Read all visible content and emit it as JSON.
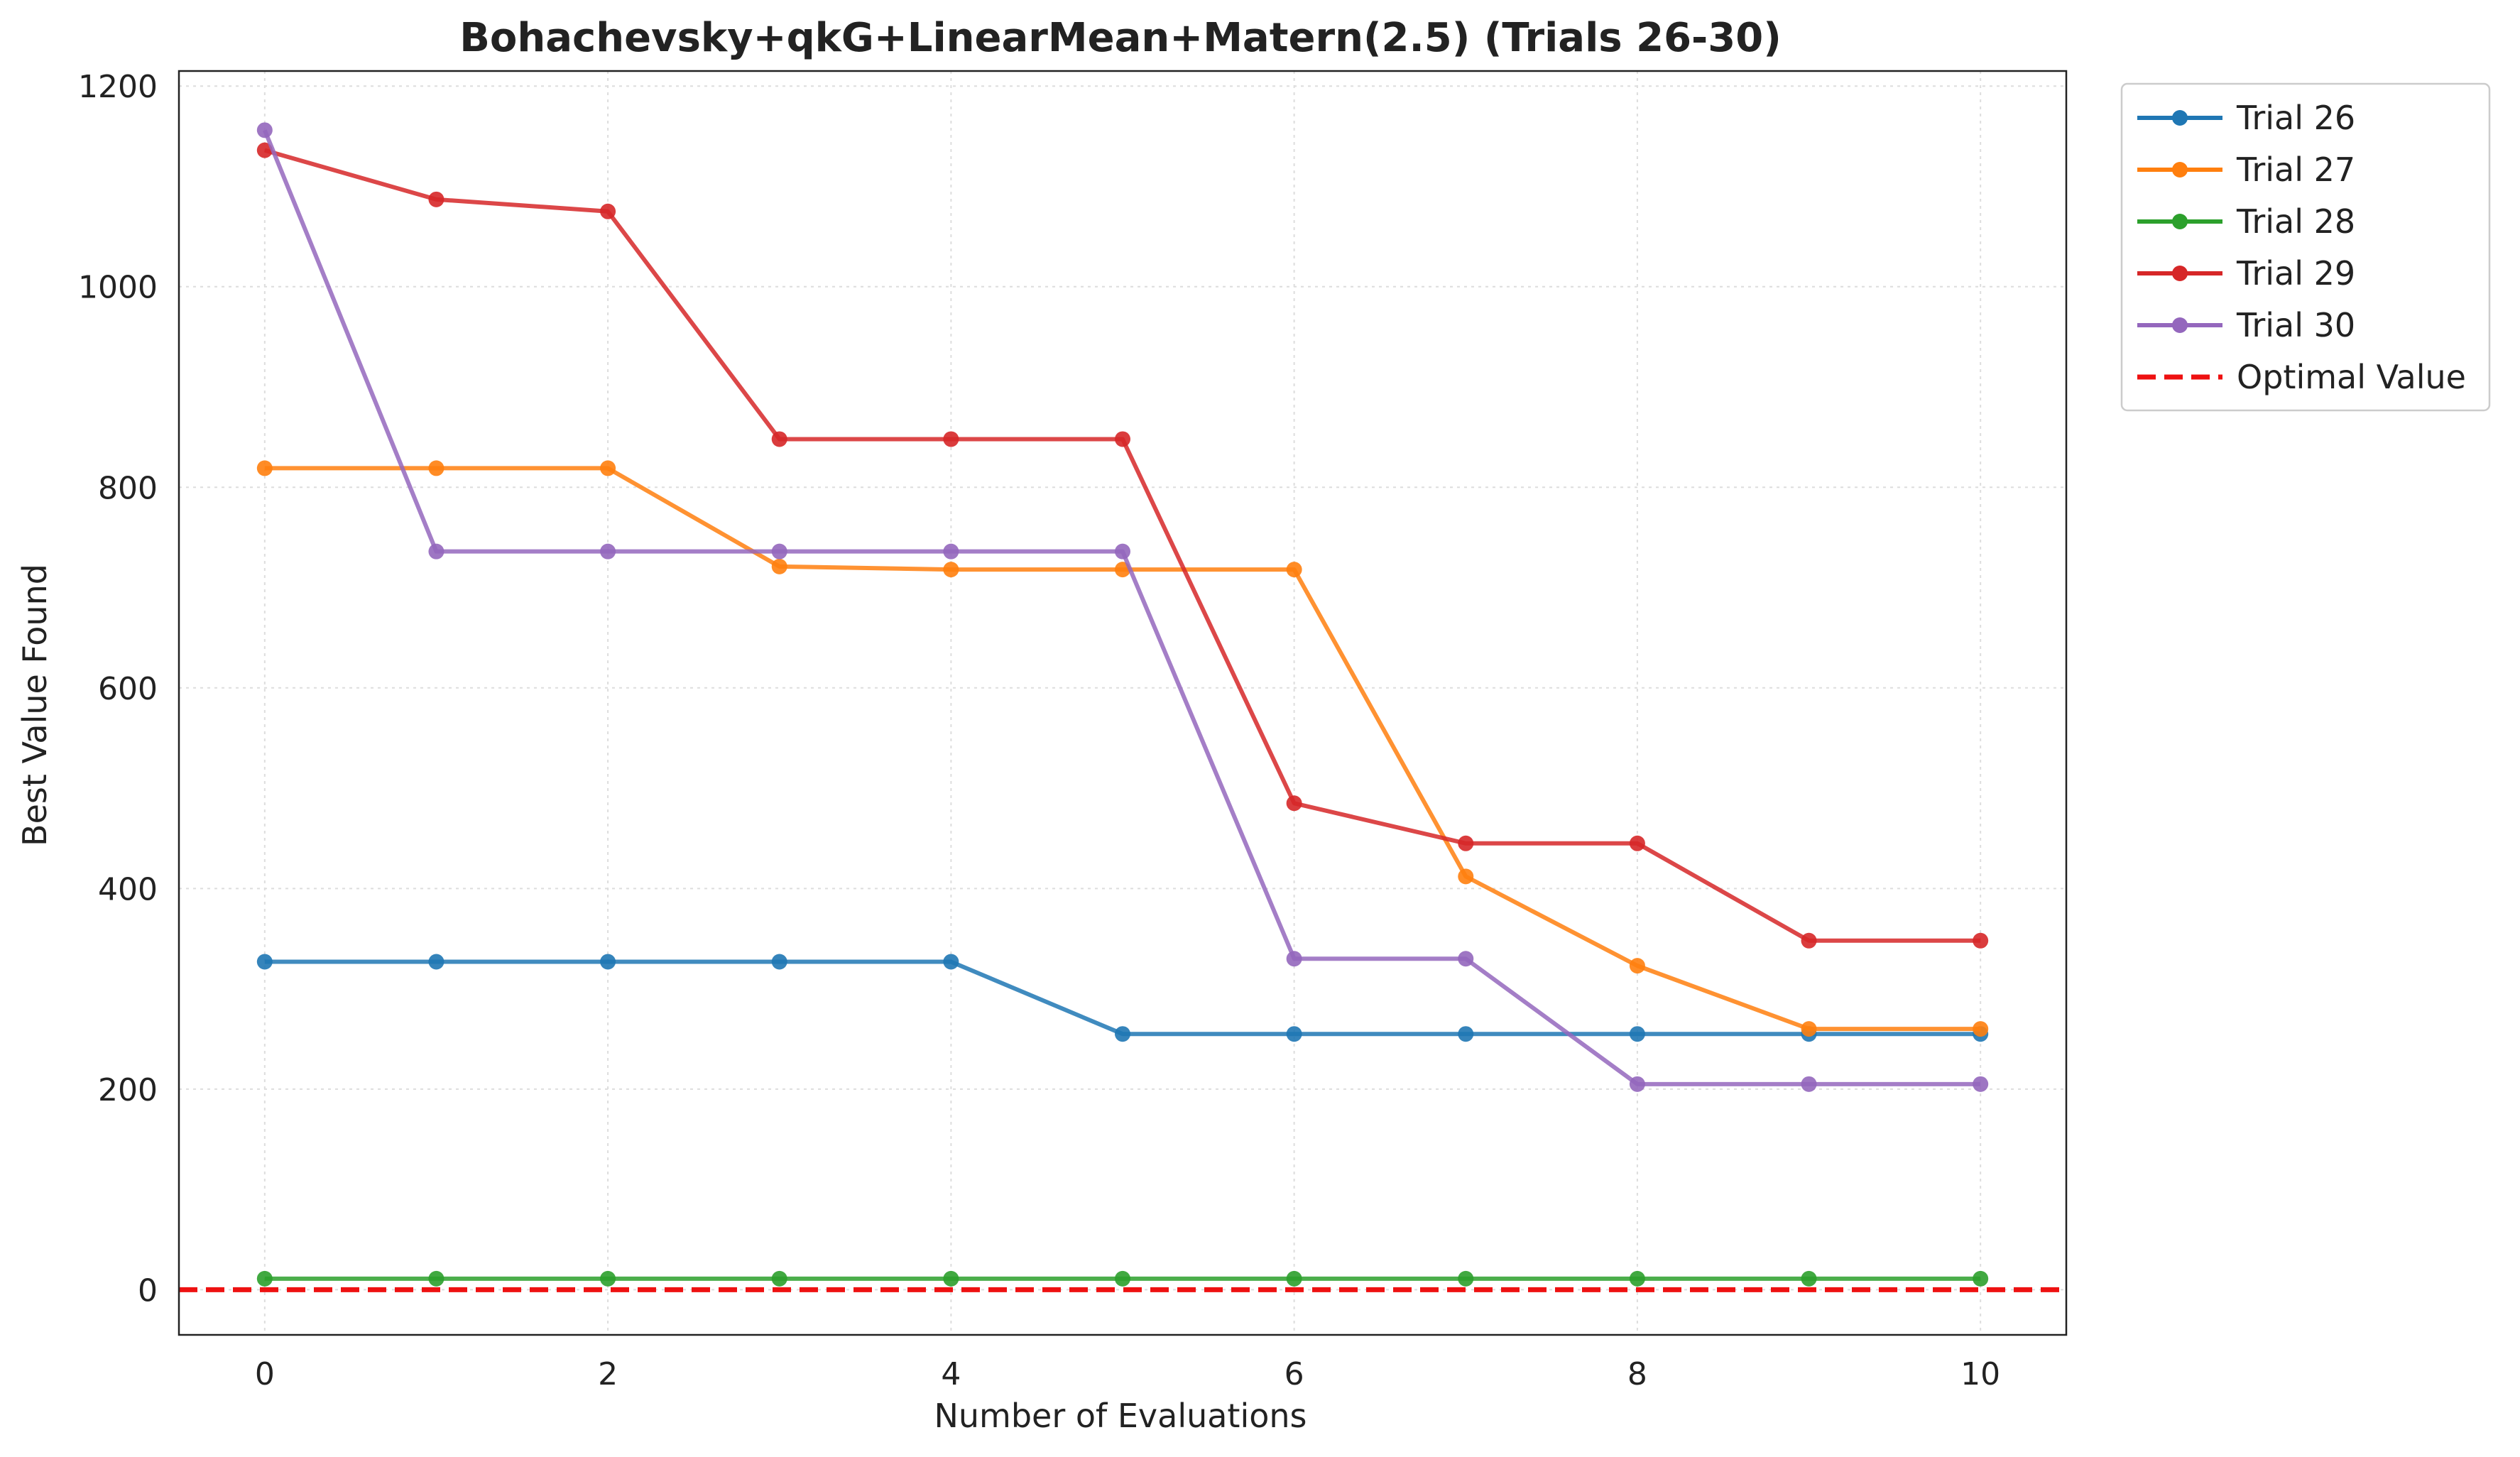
{
  "chart_data": {
    "type": "line",
    "title": "Bohachevsky+qkG+LinearMean+Matern(2.5) (Trials 26-30)",
    "xlabel": "Number of Evaluations",
    "ylabel": "Best Value Found",
    "xlim": [
      -0.5,
      10.5
    ],
    "ylim": [
      -45,
      1215
    ],
    "xticks": [
      0,
      2,
      4,
      6,
      8,
      10
    ],
    "yticks": [
      0,
      200,
      400,
      600,
      800,
      1000,
      1200
    ],
    "grid": true,
    "legend_position": "outside upper-right",
    "x": [
      0,
      1,
      2,
      3,
      4,
      5,
      6,
      7,
      8,
      9,
      10
    ],
    "series": [
      {
        "name": "Trial 26",
        "color": "#1f77b4",
        "values": [
          327,
          327,
          327,
          327,
          327,
          255,
          255,
          255,
          255,
          255,
          255
        ]
      },
      {
        "name": "Trial 27",
        "color": "#ff7f0e",
        "values": [
          819,
          819,
          819,
          721,
          718,
          718,
          718,
          412,
          323,
          260,
          260
        ]
      },
      {
        "name": "Trial 28",
        "color": "#2ca02c",
        "values": [
          11,
          11,
          11,
          11,
          11,
          11,
          11,
          11,
          11,
          11,
          11
        ]
      },
      {
        "name": "Trial 29",
        "color": "#d62728",
        "values": [
          1136,
          1087,
          1075,
          848,
          848,
          848,
          485,
          445,
          445,
          348,
          348
        ]
      },
      {
        "name": "Trial 30",
        "color": "#9467bd",
        "values": [
          1156,
          736,
          736,
          736,
          736,
          736,
          330,
          330,
          205,
          205,
          205
        ]
      }
    ],
    "reference_line": {
      "name": "Optimal Value",
      "value": 0,
      "color": "#ee1111",
      "style": "dashed"
    }
  }
}
